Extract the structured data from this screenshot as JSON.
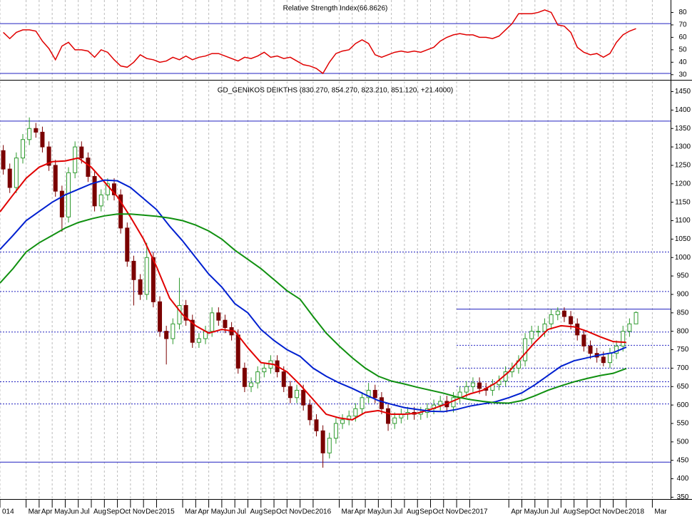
{
  "chart_data": {
    "type": "candlestick",
    "title": "GD_GENIKOS DEIKTHS (830.270, 854.270, 823.210, 851.120, +21.4000)",
    "xlim": [
      0,
      51.4
    ],
    "ylim": [
      345,
      1480
    ],
    "yticks": [
      350,
      400,
      450,
      500,
      550,
      600,
      650,
      700,
      750,
      800,
      850,
      900,
      950,
      1000,
      1050,
      1100,
      1150,
      1200,
      1250,
      1300,
      1350,
      1400,
      1450
    ],
    "grid": true,
    "xticks": [
      {
        "value": 0,
        "label": "014"
      },
      {
        "value": 2,
        "label": "Mar"
      },
      {
        "value": 3,
        "label": "Apr"
      },
      {
        "value": 4,
        "label": "May"
      },
      {
        "value": 5,
        "label": "Jun"
      },
      {
        "value": 6,
        "label": "Jul"
      },
      {
        "value": 7,
        "label": "Aug"
      },
      {
        "value": 8,
        "label": "Sep"
      },
      {
        "value": 9,
        "label": "Oct"
      },
      {
        "value": 10,
        "label": "Nov"
      },
      {
        "value": 11,
        "label": "Dec"
      },
      {
        "value": 12,
        "label": "2015"
      },
      {
        "value": 14,
        "label": "Mar"
      },
      {
        "value": 15,
        "label": "Apr"
      },
      {
        "value": 16,
        "label": "May"
      },
      {
        "value": 17,
        "label": "Jun"
      },
      {
        "value": 18,
        "label": "Jul"
      },
      {
        "value": 19,
        "label": "Aug"
      },
      {
        "value": 20,
        "label": "Sep"
      },
      {
        "value": 21,
        "label": "Oct"
      },
      {
        "value": 22,
        "label": "Nov"
      },
      {
        "value": 23,
        "label": "Dec"
      },
      {
        "value": 24,
        "label": "2016"
      },
      {
        "value": 26,
        "label": "Mar"
      },
      {
        "value": 27,
        "label": "Apr"
      },
      {
        "value": 28,
        "label": "May"
      },
      {
        "value": 29,
        "label": "Jun"
      },
      {
        "value": 30,
        "label": "Jul"
      },
      {
        "value": 31,
        "label": "Aug"
      },
      {
        "value": 32,
        "label": "Sep"
      },
      {
        "value": 33,
        "label": "Oct"
      },
      {
        "value": 34,
        "label": "Nov"
      },
      {
        "value": 35,
        "label": "Dec"
      },
      {
        "value": 36,
        "label": "2017"
      },
      {
        "value": 39,
        "label": "Apr"
      },
      {
        "value": 40,
        "label": "May"
      },
      {
        "value": 41,
        "label": "Jun"
      },
      {
        "value": 42,
        "label": "Jul"
      },
      {
        "value": 43,
        "label": "Aug"
      },
      {
        "value": 44,
        "label": "Sep"
      },
      {
        "value": 45,
        "label": "Oct"
      },
      {
        "value": 46,
        "label": "Nov"
      },
      {
        "value": 47,
        "label": "Dec"
      },
      {
        "value": 48,
        "label": "2018"
      },
      {
        "value": 50,
        "label": "Mar"
      }
    ],
    "up_color": "#2f9a2f",
    "down_color": "#7a0000",
    "x": [
      0.25,
      0.75,
      1.25,
      1.75,
      2.25,
      2.75,
      3.25,
      3.75,
      4.25,
      4.75,
      5.25,
      5.75,
      6.25,
      6.75,
      7.25,
      7.75,
      8.25,
      8.75,
      9.25,
      9.75,
      10.25,
      10.75,
      11.25,
      11.75,
      12.25,
      12.75,
      13.25,
      13.75,
      14.25,
      14.75,
      15.25,
      15.75,
      16.25,
      16.75,
      17.25,
      17.75,
      18.25,
      18.75,
      19.25,
      19.75,
      20.25,
      20.75,
      21.25,
      21.75,
      22.25,
      22.75,
      23.25,
      23.75,
      24.25,
      24.75,
      25.25,
      25.75,
      26.25,
      26.75,
      27.25,
      27.75,
      28.25,
      28.75,
      29.25,
      29.75,
      30.25,
      30.75,
      31.25,
      31.75,
      32.25,
      32.75,
      33.25,
      33.75,
      34.25,
      34.75,
      35.25,
      35.75,
      36.25,
      36.75,
      37.25,
      37.75,
      38.25,
      38.75,
      39.25,
      39.75,
      40.25,
      40.75,
      41.25,
      41.75,
      42.25,
      42.75,
      43.25,
      43.75,
      44.25,
      44.75,
      45.25,
      45.75,
      46.25,
      46.75,
      47.25,
      47.75,
      48.25,
      48.75
    ],
    "open": [
      1290,
      1240,
      1190,
      1270,
      1320,
      1350,
      1340,
      1300,
      1250,
      1180,
      1110,
      1230,
      1300,
      1270,
      1220,
      1140,
      1170,
      1200,
      1170,
      1080,
      990,
      940,
      900,
      1000,
      880,
      800,
      780,
      820,
      870,
      830,
      770,
      780,
      800,
      850,
      830,
      810,
      790,
      700,
      650,
      660,
      690,
      700,
      720,
      690,
      650,
      620,
      640,
      600,
      560,
      530,
      470,
      510,
      550,
      560,
      570,
      590,
      620,
      640,
      620,
      590,
      550,
      565,
      575,
      580,
      575,
      580,
      590,
      600,
      610,
      595,
      620,
      635,
      650,
      660,
      645,
      640,
      655,
      665,
      690,
      700,
      720,
      780,
      800,
      800,
      820,
      845,
      855,
      840,
      820,
      790,
      760,
      740,
      730,
      715,
      740,
      760,
      800,
      820
    ],
    "high": [
      1305,
      1255,
      1285,
      1335,
      1380,
      1365,
      1355,
      1315,
      1265,
      1195,
      1245,
      1315,
      1315,
      1285,
      1235,
      1185,
      1215,
      1215,
      1185,
      1095,
      1005,
      955,
      1040,
      1015,
      895,
      815,
      835,
      945,
      885,
      845,
      795,
      815,
      865,
      865,
      845,
      825,
      805,
      715,
      675,
      705,
      715,
      735,
      735,
      705,
      665,
      655,
      655,
      615,
      575,
      545,
      525,
      565,
      575,
      585,
      605,
      635,
      660,
      655,
      635,
      605,
      580,
      590,
      595,
      595,
      595,
      605,
      615,
      625,
      625,
      635,
      650,
      665,
      675,
      675,
      660,
      670,
      680,
      705,
      715,
      735,
      795,
      815,
      815,
      835,
      860,
      865,
      865,
      855,
      835,
      805,
      775,
      755,
      745,
      755,
      775,
      815,
      835,
      854
    ],
    "low": [
      1225,
      1175,
      1175,
      1255,
      1305,
      1325,
      1285,
      1235,
      1165,
      1070,
      1095,
      1215,
      1255,
      1205,
      1125,
      1125,
      1155,
      1155,
      1065,
      975,
      870,
      885,
      885,
      865,
      785,
      710,
      765,
      805,
      815,
      755,
      755,
      765,
      785,
      815,
      795,
      775,
      685,
      635,
      635,
      645,
      675,
      685,
      675,
      635,
      605,
      605,
      585,
      545,
      515,
      430,
      455,
      495,
      535,
      545,
      555,
      575,
      605,
      605,
      575,
      530,
      535,
      550,
      560,
      560,
      560,
      565,
      575,
      585,
      580,
      580,
      605,
      620,
      635,
      630,
      625,
      625,
      640,
      650,
      675,
      685,
      705,
      765,
      785,
      785,
      805,
      830,
      825,
      805,
      775,
      745,
      725,
      715,
      705,
      700,
      725,
      745,
      785,
      823
    ],
    "close": [
      1240,
      1190,
      1270,
      1320,
      1350,
      1340,
      1300,
      1250,
      1180,
      1110,
      1230,
      1300,
      1270,
      1220,
      1140,
      1170,
      1200,
      1170,
      1080,
      990,
      940,
      900,
      1000,
      880,
      800,
      780,
      820,
      870,
      830,
      770,
      780,
      800,
      850,
      830,
      810,
      790,
      700,
      650,
      660,
      690,
      700,
      720,
      690,
      650,
      620,
      640,
      600,
      560,
      530,
      470,
      510,
      550,
      560,
      570,
      590,
      620,
      640,
      620,
      590,
      550,
      565,
      575,
      580,
      575,
      580,
      590,
      600,
      610,
      595,
      620,
      635,
      650,
      660,
      645,
      640,
      655,
      665,
      690,
      700,
      720,
      780,
      800,
      800,
      820,
      845,
      855,
      840,
      820,
      790,
      760,
      740,
      730,
      715,
      740,
      760,
      800,
      820,
      851
    ],
    "series": [
      {
        "color": "#e00000",
        "x": [
          0,
          1,
          2,
          3,
          4,
          5,
          6,
          7,
          8,
          9,
          10,
          11,
          12,
          13,
          14,
          15,
          16,
          17,
          18,
          19,
          20,
          21,
          22,
          23,
          24,
          25,
          26,
          27,
          28,
          29,
          30,
          31,
          32,
          33,
          34,
          35,
          36,
          37,
          38,
          39,
          40,
          41,
          42,
          43,
          44,
          45,
          46,
          47,
          48
        ],
        "values": [
          1124,
          1170,
          1215,
          1245,
          1260,
          1262,
          1270,
          1245,
          1205,
          1165,
          1110,
          1050,
          975,
          890,
          845,
          815,
          795,
          805,
          800,
          755,
          715,
          710,
          690,
          655,
          615,
          575,
          565,
          560,
          580,
          585,
          575,
          575,
          578,
          588,
          600,
          615,
          630,
          640,
          660,
          690,
          730,
          770,
          805,
          815,
          812,
          800,
          785,
          772,
          770
        ]
      },
      {
        "color": "#0020d0",
        "x": [
          0,
          1,
          2,
          3,
          4,
          5,
          6,
          7,
          8,
          9,
          10,
          11,
          12,
          13,
          14,
          15,
          16,
          17,
          18,
          19,
          20,
          21,
          22,
          23,
          24,
          25,
          26,
          27,
          28,
          29,
          30,
          31,
          32,
          33,
          34,
          35,
          36,
          37,
          38,
          39,
          40,
          41,
          42,
          43,
          44,
          45,
          46,
          47,
          48
        ],
        "values": [
          1022,
          1060,
          1100,
          1125,
          1150,
          1170,
          1185,
          1200,
          1210,
          1208,
          1190,
          1160,
          1130,
          1085,
          1045,
          1000,
          955,
          920,
          875,
          850,
          805,
          775,
          750,
          732,
          700,
          678,
          660,
          645,
          628,
          612,
          602,
          593,
          588,
          583,
          582,
          588,
          597,
          603,
          609,
          620,
          633,
          655,
          680,
          705,
          720,
          728,
          736,
          742,
          757
        ]
      },
      {
        "color": "#109010",
        "x": [
          0,
          1,
          2,
          3,
          4,
          5,
          6,
          7,
          8,
          9,
          10,
          11,
          12,
          13,
          14,
          15,
          16,
          17,
          18,
          19,
          20,
          21,
          22,
          23,
          24,
          25,
          26,
          27,
          28,
          29,
          30,
          31,
          32,
          33,
          34,
          35,
          36,
          37,
          38,
          39,
          40,
          41,
          42,
          43,
          44,
          45,
          46,
          47,
          48
        ],
        "values": [
          931,
          970,
          1015,
          1040,
          1060,
          1080,
          1095,
          1105,
          1113,
          1118,
          1118,
          1115,
          1112,
          1107,
          1100,
          1088,
          1072,
          1050,
          1020,
          995,
          970,
          940,
          910,
          887,
          840,
          795,
          760,
          728,
          700,
          678,
          665,
          657,
          648,
          640,
          632,
          622,
          615,
          610,
          606,
          605,
          612,
          625,
          640,
          652,
          663,
          672,
          680,
          686,
          699
        ]
      }
    ],
    "hline_color": "#2020c0",
    "hlines": [
      {
        "value": 1370,
        "style": "solid"
      },
      {
        "value": 445,
        "style": "solid"
      },
      {
        "value": 1015,
        "style": "dotted"
      },
      {
        "value": 908,
        "style": "dotted"
      },
      {
        "value": 798,
        "style": "dotted"
      },
      {
        "value": 663,
        "style": "dotted"
      },
      {
        "value": 603,
        "style": "dotted"
      },
      {
        "value": 860,
        "style": "solid",
        "from": 35
      },
      {
        "value": 762,
        "style": "dotted",
        "from": 35
      },
      {
        "value": 700,
        "style": "dotted",
        "from": 35
      },
      {
        "value": 650,
        "style": "dotted",
        "from": 35
      }
    ],
    "rsi": {
      "title": "Relative Strength Index(66.8626)",
      "color": "#e00000",
      "ylim": [
        27,
        90
      ],
      "yticks": [
        30,
        40,
        50,
        60,
        70,
        80
      ],
      "hlines": [
        71,
        31
      ],
      "values": [
        64,
        59,
        64,
        66,
        66,
        65,
        57,
        51,
        42,
        53,
        56,
        50,
        50,
        49,
        44,
        50,
        48,
        42,
        37,
        36,
        40,
        46,
        43,
        42,
        40,
        41,
        44,
        42,
        45,
        42,
        44,
        45,
        47,
        47,
        45,
        43,
        41,
        44,
        43,
        45,
        48,
        44,
        45,
        43,
        44,
        41,
        38,
        37,
        35,
        31,
        40,
        47,
        49,
        50,
        55,
        58,
        55,
        46,
        44,
        46,
        48,
        49,
        48,
        49,
        48,
        50,
        52,
        57,
        60,
        62,
        63,
        62,
        62,
        60,
        60,
        59,
        61,
        66,
        71,
        79,
        79,
        79,
        80,
        82,
        80,
        70,
        69,
        64,
        52,
        48,
        46,
        47,
        44,
        47,
        56,
        62,
        65,
        67
      ]
    }
  }
}
